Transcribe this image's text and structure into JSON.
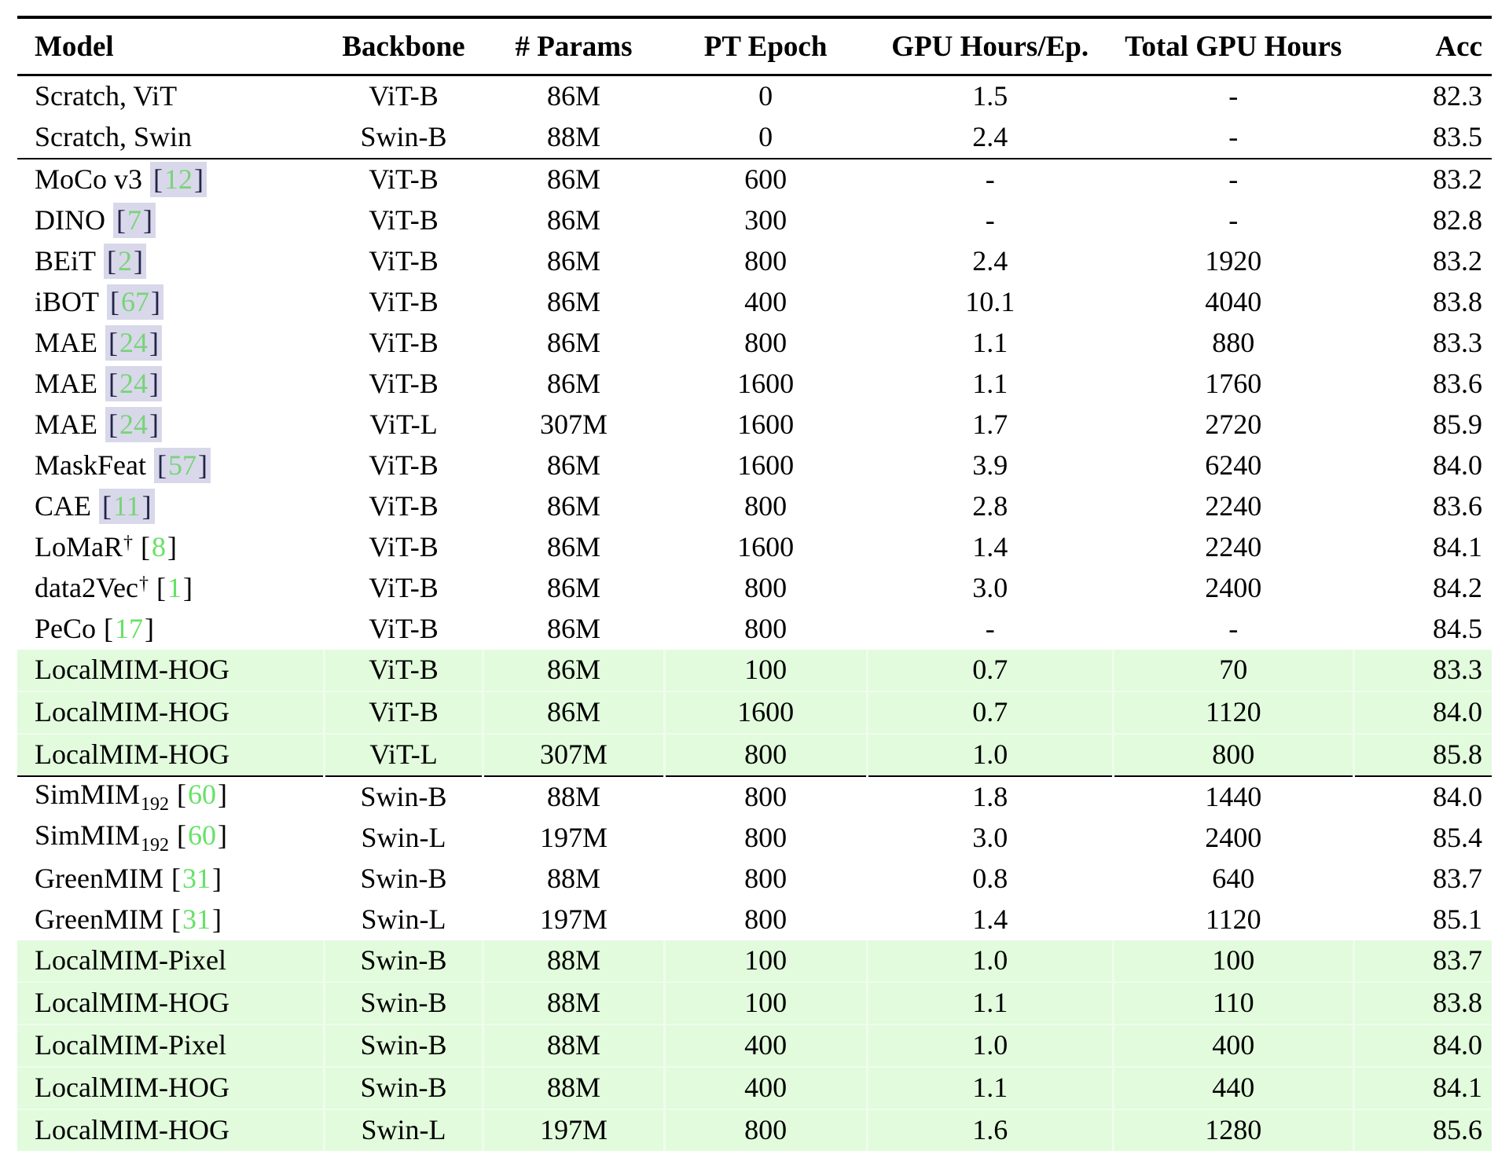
{
  "table": {
    "colors": {
      "highlight_row": "#e1fbdc",
      "highlight_cell_line": "#effcec",
      "citation_green": "#67e167",
      "citation_green_boxed": "#79d379",
      "citation_box_background": "#d8d8ea",
      "citation_box_bracket": "#24244a",
      "rule": "#000000"
    },
    "columns": [
      {
        "key": "model",
        "label": "Model"
      },
      {
        "key": "backbone",
        "label": "Backbone"
      },
      {
        "key": "params",
        "label": "# Params"
      },
      {
        "key": "pt_epoch",
        "label": "PT Epoch"
      },
      {
        "key": "gpu_hours_ep",
        "label": "GPU Hours/Ep."
      },
      {
        "key": "total_gpu_hours",
        "label": "Total GPU Hours"
      },
      {
        "key": "acc",
        "label": "Acc"
      }
    ],
    "rows": [
      {
        "model": {
          "text": "Scratch, ViT"
        },
        "backbone": "ViT-B",
        "params": "86M",
        "pt_epoch": "0",
        "gpu_hours_ep": "1.5",
        "total_gpu_hours": "-",
        "acc": "82.3",
        "highlight": false,
        "rule_below": false
      },
      {
        "model": {
          "text": "Scratch, Swin"
        },
        "backbone": "Swin-B",
        "params": "88M",
        "pt_epoch": "0",
        "gpu_hours_ep": "2.4",
        "total_gpu_hours": "-",
        "acc": "83.5",
        "highlight": false,
        "rule_below": true
      },
      {
        "model": {
          "text": "MoCo v3",
          "cite": "12",
          "cite_boxed": true
        },
        "backbone": "ViT-B",
        "params": "86M",
        "pt_epoch": "600",
        "gpu_hours_ep": "-",
        "total_gpu_hours": "-",
        "acc": "83.2",
        "highlight": false,
        "rule_below": false
      },
      {
        "model": {
          "text": "DINO",
          "cite": "7",
          "cite_boxed": true
        },
        "backbone": "ViT-B",
        "params": "86M",
        "pt_epoch": "300",
        "gpu_hours_ep": "-",
        "total_gpu_hours": "-",
        "acc": "82.8",
        "highlight": false,
        "rule_below": false
      },
      {
        "model": {
          "text": "BEiT",
          "cite": "2",
          "cite_boxed": true
        },
        "backbone": "ViT-B",
        "params": "86M",
        "pt_epoch": "800",
        "gpu_hours_ep": "2.4",
        "total_gpu_hours": "1920",
        "acc": "83.2",
        "highlight": false,
        "rule_below": false
      },
      {
        "model": {
          "text": "iBOT",
          "cite": "67",
          "cite_boxed": true
        },
        "backbone": "ViT-B",
        "params": "86M",
        "pt_epoch": "400",
        "gpu_hours_ep": "10.1",
        "total_gpu_hours": "4040",
        "acc": "83.8",
        "highlight": false,
        "rule_below": false
      },
      {
        "model": {
          "text": "MAE",
          "cite": "24",
          "cite_boxed": true
        },
        "backbone": "ViT-B",
        "params": "86M",
        "pt_epoch": "800",
        "gpu_hours_ep": "1.1",
        "total_gpu_hours": "880",
        "acc": "83.3",
        "highlight": false,
        "rule_below": false
      },
      {
        "model": {
          "text": "MAE",
          "cite": "24",
          "cite_boxed": true
        },
        "backbone": "ViT-B",
        "params": "86M",
        "pt_epoch": "1600",
        "gpu_hours_ep": "1.1",
        "total_gpu_hours": "1760",
        "acc": "83.6",
        "highlight": false,
        "rule_below": false
      },
      {
        "model": {
          "text": "MAE",
          "cite": "24",
          "cite_boxed": true
        },
        "backbone": "ViT-L",
        "params": "307M",
        "pt_epoch": "1600",
        "gpu_hours_ep": "1.7",
        "total_gpu_hours": "2720",
        "acc": "85.9",
        "highlight": false,
        "rule_below": false
      },
      {
        "model": {
          "text": "MaskFeat",
          "cite": "57",
          "cite_boxed": true
        },
        "backbone": "ViT-B",
        "params": "86M",
        "pt_epoch": "1600",
        "gpu_hours_ep": "3.9",
        "total_gpu_hours": "6240",
        "acc": "84.0",
        "highlight": false,
        "rule_below": false
      },
      {
        "model": {
          "text": "CAE",
          "cite": "11",
          "cite_boxed": true
        },
        "backbone": "ViT-B",
        "params": "86M",
        "pt_epoch": "800",
        "gpu_hours_ep": "2.8",
        "total_gpu_hours": "2240",
        "acc": "83.6",
        "highlight": false,
        "rule_below": false
      },
      {
        "model": {
          "text": "LoMaR",
          "dagger": true,
          "cite": "8",
          "cite_boxed": false
        },
        "backbone": "ViT-B",
        "params": "86M",
        "pt_epoch": "1600",
        "gpu_hours_ep": "1.4",
        "total_gpu_hours": "2240",
        "acc": "84.1",
        "highlight": false,
        "rule_below": false
      },
      {
        "model": {
          "text": "data2Vec",
          "dagger": true,
          "cite": "1",
          "cite_boxed": false
        },
        "backbone": "ViT-B",
        "params": "86M",
        "pt_epoch": "800",
        "gpu_hours_ep": "3.0",
        "total_gpu_hours": "2400",
        "acc": "84.2",
        "highlight": false,
        "rule_below": false
      },
      {
        "model": {
          "text": "PeCo",
          "cite": "17",
          "cite_boxed": false
        },
        "backbone": "ViT-B",
        "params": "86M",
        "pt_epoch": "800",
        "gpu_hours_ep": "-",
        "total_gpu_hours": "-",
        "acc": "84.5",
        "highlight": false,
        "rule_below": false
      },
      {
        "model": {
          "text": "LocalMIM-HOG"
        },
        "backbone": "ViT-B",
        "params": "86M",
        "pt_epoch": "100",
        "gpu_hours_ep": "0.7",
        "total_gpu_hours": "70",
        "acc": "83.3",
        "highlight": true,
        "rule_below": false
      },
      {
        "model": {
          "text": "LocalMIM-HOG"
        },
        "backbone": "ViT-B",
        "params": "86M",
        "pt_epoch": "1600",
        "gpu_hours_ep": "0.7",
        "total_gpu_hours": "1120",
        "acc": "84.0",
        "highlight": true,
        "rule_below": false
      },
      {
        "model": {
          "text": "LocalMIM-HOG"
        },
        "backbone": "ViT-L",
        "params": "307M",
        "pt_epoch": "800",
        "gpu_hours_ep": "1.0",
        "total_gpu_hours": "800",
        "acc": "85.8",
        "highlight": true,
        "rule_below": true
      },
      {
        "model": {
          "text": "SimMIM",
          "sub": "192",
          "cite": "60",
          "cite_boxed": false
        },
        "backbone": "Swin-B",
        "params": "88M",
        "pt_epoch": "800",
        "gpu_hours_ep": "1.8",
        "total_gpu_hours": "1440",
        "acc": "84.0",
        "highlight": false,
        "rule_below": false
      },
      {
        "model": {
          "text": "SimMIM",
          "sub": "192",
          "cite": "60",
          "cite_boxed": false
        },
        "backbone": "Swin-L",
        "params": "197M",
        "pt_epoch": "800",
        "gpu_hours_ep": "3.0",
        "total_gpu_hours": "2400",
        "acc": "85.4",
        "highlight": false,
        "rule_below": false
      },
      {
        "model": {
          "text": "GreenMIM",
          "cite": "31",
          "cite_boxed": false
        },
        "backbone": "Swin-B",
        "params": "88M",
        "pt_epoch": "800",
        "gpu_hours_ep": "0.8",
        "total_gpu_hours": "640",
        "acc": "83.7",
        "highlight": false,
        "rule_below": false
      },
      {
        "model": {
          "text": "GreenMIM",
          "cite": "31",
          "cite_boxed": false
        },
        "backbone": "Swin-L",
        "params": "197M",
        "pt_epoch": "800",
        "gpu_hours_ep": "1.4",
        "total_gpu_hours": "1120",
        "acc": "85.1",
        "highlight": false,
        "rule_below": false
      },
      {
        "model": {
          "text": "LocalMIM-Pixel"
        },
        "backbone": "Swin-B",
        "params": "88M",
        "pt_epoch": "100",
        "gpu_hours_ep": "1.0",
        "total_gpu_hours": "100",
        "acc": "83.7",
        "highlight": true,
        "rule_below": false
      },
      {
        "model": {
          "text": "LocalMIM-HOG"
        },
        "backbone": "Swin-B",
        "params": "88M",
        "pt_epoch": "100",
        "gpu_hours_ep": "1.1",
        "total_gpu_hours": "110",
        "acc": "83.8",
        "highlight": true,
        "rule_below": false
      },
      {
        "model": {
          "text": "LocalMIM-Pixel"
        },
        "backbone": "Swin-B",
        "params": "88M",
        "pt_epoch": "400",
        "gpu_hours_ep": "1.0",
        "total_gpu_hours": "400",
        "acc": "84.0",
        "highlight": true,
        "rule_below": false
      },
      {
        "model": {
          "text": "LocalMIM-HOG"
        },
        "backbone": "Swin-B",
        "params": "88M",
        "pt_epoch": "400",
        "gpu_hours_ep": "1.1",
        "total_gpu_hours": "440",
        "acc": "84.1",
        "highlight": true,
        "rule_below": false
      },
      {
        "model": {
          "text": "LocalMIM-HOG"
        },
        "backbone": "Swin-L",
        "params": "197M",
        "pt_epoch": "800",
        "gpu_hours_ep": "1.6",
        "total_gpu_hours": "1280",
        "acc": "85.6",
        "highlight": true,
        "rule_below": false
      }
    ]
  }
}
